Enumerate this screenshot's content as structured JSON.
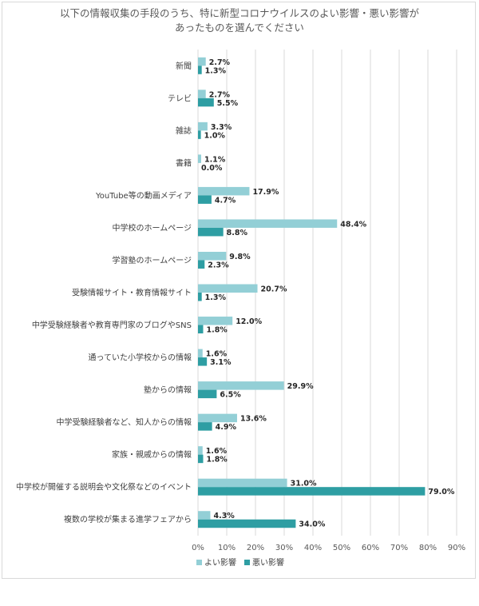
{
  "chart_data": {
    "type": "bar",
    "orientation": "horizontal",
    "title_lines": [
      "以下の情報収集の手段のうち、特に新型コロナウイルスのよい影響・悪い影響が",
      "あったものを選んでください"
    ],
    "categories": [
      "新聞",
      "テレビ",
      "雑誌",
      "書籍",
      "YouTube等の動画メディア",
      "中学校のホームページ",
      "学習塾のホームページ",
      "受験情報サイト・教育情報サイト",
      "中学受験経験者や教育専門家のブログやSNS",
      "通っていた小学校からの情報",
      "塾からの情報",
      "中学受験経験者など、知人からの情報",
      "家族・親戚からの情報",
      "中学校が開催する説明会や文化祭などのイベント",
      "複数の学校が集まる進学フェアから"
    ],
    "series": [
      {
        "name": "よい影響",
        "color": "#93cfd6",
        "values": [
          2.7,
          2.7,
          3.3,
          1.1,
          17.9,
          48.4,
          9.8,
          20.7,
          12.0,
          1.6,
          29.9,
          13.6,
          1.6,
          31.0,
          4.3
        ],
        "labels": [
          "2.7%",
          "2.7%",
          "3.3%",
          "1.1%",
          "17.9%",
          "48.4%",
          "9.8%",
          "20.7%",
          "12.0%",
          "1.6%",
          "29.9%",
          "13.6%",
          "1.6%",
          "31.0%",
          "4.3%"
        ]
      },
      {
        "name": "悪い影響",
        "color": "#2e9ea3",
        "values": [
          1.3,
          5.5,
          1.0,
          0.0,
          4.7,
          8.8,
          2.3,
          1.3,
          1.8,
          3.1,
          6.5,
          4.9,
          1.8,
          79.0,
          34.0
        ],
        "labels": [
          "1.3%",
          "5.5%",
          "1.0%",
          "0.0%",
          "4.7%",
          "8.8%",
          "2.3%",
          "1.3%",
          "1.8%",
          "3.1%",
          "6.5%",
          "4.9%",
          "1.8%",
          "79.0%",
          "34.0%"
        ]
      }
    ],
    "x_ticks": [
      "0%",
      "10%",
      "20%",
      "30%",
      "40%",
      "50%",
      "60%",
      "70%",
      "80%",
      "90%"
    ],
    "xlim": [
      0,
      90
    ],
    "grid": true,
    "legend_position": "bottom"
  }
}
